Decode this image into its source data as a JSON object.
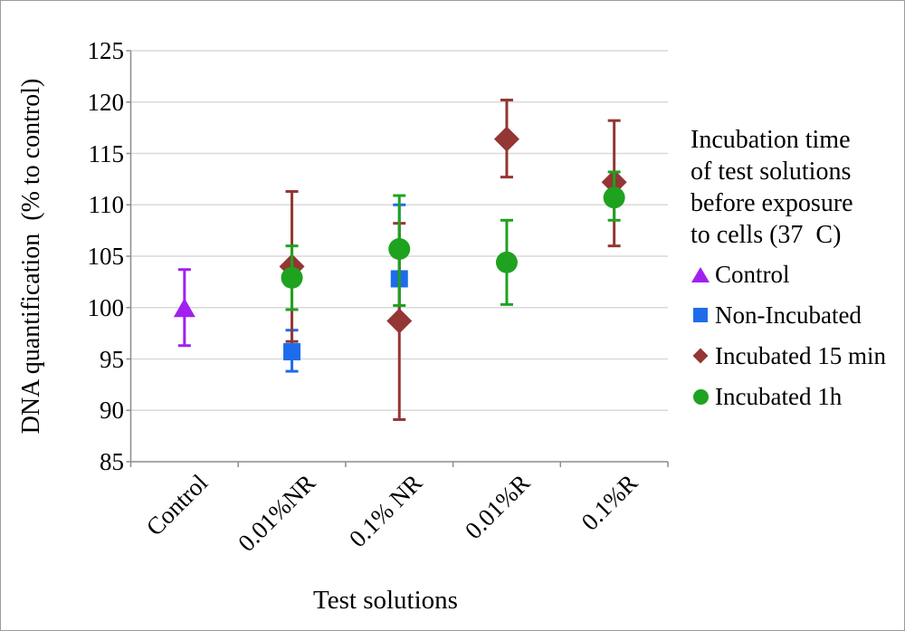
{
  "chart_data": {
    "type": "scatter",
    "title": "",
    "xlabel": "Test solutions",
    "ylabel": "DNA quantification  (% to control)",
    "ylim": [
      85,
      125
    ],
    "yticks": [
      85,
      90,
      95,
      100,
      105,
      110,
      115,
      120,
      125
    ],
    "grid": true,
    "legend_position": "right",
    "legend_title": "Incubation time\nof test solutions\nbefore exposure\nto cells (37  C)",
    "categories": [
      "Control",
      "0.01%NR",
      "0.1% NR",
      "0.01%R",
      "0.1%R"
    ],
    "series": [
      {
        "name": "Control",
        "marker": "triangle",
        "color": "#A120F0",
        "points": [
          {
            "category": "Control",
            "y": 100.0,
            "y_high": 103.7,
            "y_low": 96.3
          }
        ]
      },
      {
        "name": "Non-Incubated",
        "marker": "square",
        "color": "#1E6CEC",
        "points": [
          {
            "category": "0.01%NR",
            "y": 95.7,
            "y_high": 97.8,
            "y_low": 93.8
          },
          {
            "category": "0.1% NR",
            "y": 102.8,
            "y_high": 110.0,
            "y_low": 99.0
          }
        ]
      },
      {
        "name": "Incubated 15 min",
        "marker": "diamond",
        "color": "#943634",
        "points": [
          {
            "category": "0.01%NR",
            "y": 104.0,
            "y_high": 111.3,
            "y_low": 96.7
          },
          {
            "category": "0.1% NR",
            "y": 98.7,
            "y_high": 108.2,
            "y_low": 89.1
          },
          {
            "category": "0.01%R",
            "y": 116.4,
            "y_high": 120.2,
            "y_low": 112.7
          },
          {
            "category": "0.1%R",
            "y": 112.2,
            "y_high": 118.2,
            "y_low": 106.0
          }
        ]
      },
      {
        "name": "Incubated 1h",
        "marker": "circle",
        "color": "#1FA21F",
        "points": [
          {
            "category": "0.01%NR",
            "y": 102.9,
            "y_high": 106.0,
            "y_low": 99.8
          },
          {
            "category": "0.1% NR",
            "y": 105.7,
            "y_high": 110.9,
            "y_low": 100.2
          },
          {
            "category": "0.01%R",
            "y": 104.4,
            "y_high": 108.5,
            "y_low": 100.3
          },
          {
            "category": "0.1%R",
            "y": 110.7,
            "y_high": 113.2,
            "y_low": 108.5
          }
        ]
      }
    ],
    "colors": {
      "gridline": "#D9D9D9",
      "axis": "#8C8C8C",
      "text": "#000000"
    }
  }
}
